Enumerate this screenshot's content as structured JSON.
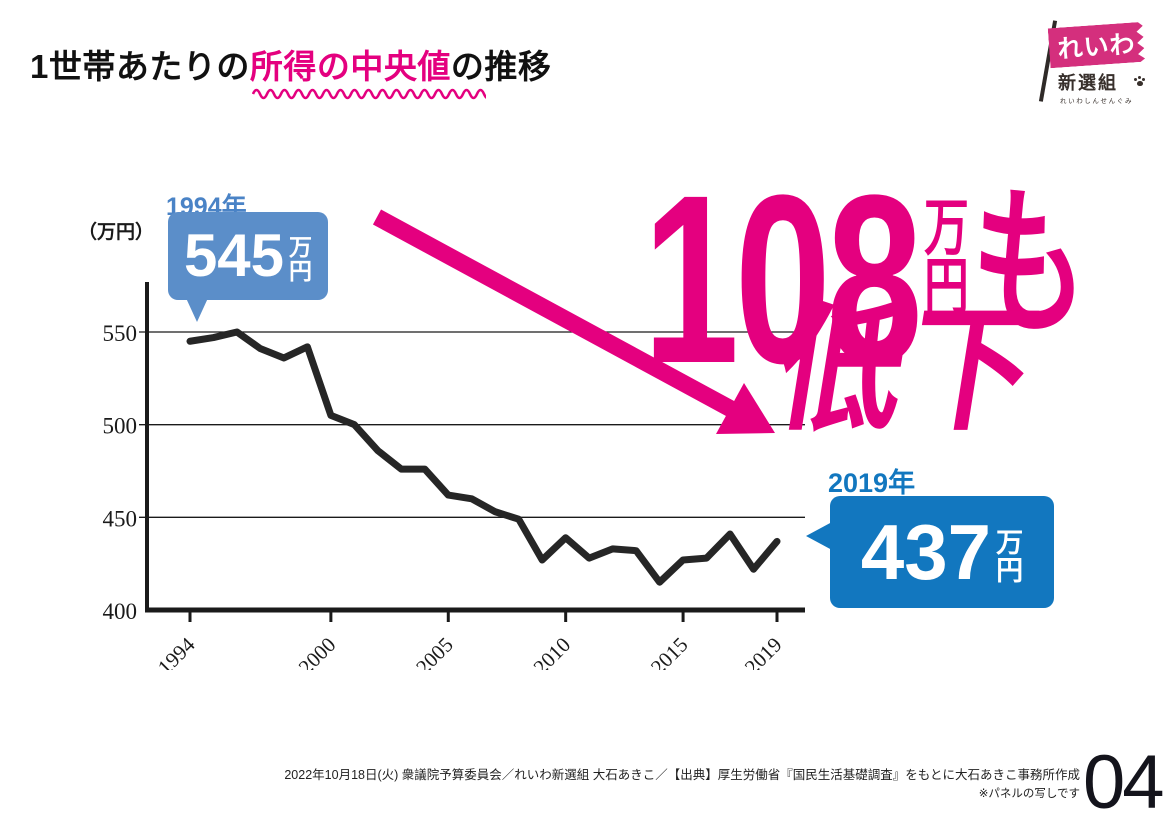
{
  "title": {
    "prefix": "1世帯あたりの",
    "highlight": "所得の中央値",
    "suffix": "の推移"
  },
  "logo": {
    "flag": "れいわ",
    "group": "新選組",
    "kana": "れいわしんせんぐみ"
  },
  "callout_start": {
    "year": "1994年",
    "value": "545",
    "unit_top": "万",
    "unit_bottom": "円"
  },
  "callout_end": {
    "year": "2019年",
    "value": "437",
    "unit_top": "万",
    "unit_bottom": "円"
  },
  "drop": {
    "number": "108",
    "unit_top": "万",
    "unit_bottom": "円",
    "particle": "も",
    "word": "低下"
  },
  "footer": {
    "caption": "2022年10月18日(火) 衆議院予算委員会／れいわ新選組 大石あきこ／【出典】厚生労働省『国民生活基礎調査』をもとに大石あきこ事務所作成",
    "note": "※パネルの写しです",
    "page_number": "04"
  },
  "colors": {
    "pink": "#e4007f",
    "blue_light": "#5b8ec9",
    "blue_dark": "#1277bf",
    "line": "#262626"
  },
  "chart_data": {
    "type": "line",
    "title": "1世帯あたりの所得の中央値の推移",
    "xlabel": "",
    "ylabel": "（万円）",
    "x": [
      1994,
      1995,
      1996,
      1997,
      1998,
      1999,
      2000,
      2001,
      2002,
      2003,
      2004,
      2005,
      2006,
      2007,
      2008,
      2009,
      2010,
      2011,
      2012,
      2013,
      2014,
      2015,
      2016,
      2017,
      2018,
      2019
    ],
    "values": [
      545,
      547,
      550,
      541,
      536,
      542,
      505,
      500,
      486,
      476,
      476,
      462,
      460,
      453,
      449,
      427,
      439,
      428,
      433,
      432,
      415,
      427,
      428,
      441,
      422,
      437
    ],
    "yticks": [
      400,
      450,
      500,
      550
    ],
    "xticks": [
      1994,
      2000,
      2005,
      2010,
      2015,
      2019
    ],
    "ylim": [
      400,
      573
    ],
    "grid": "horizontal",
    "legend": null
  }
}
